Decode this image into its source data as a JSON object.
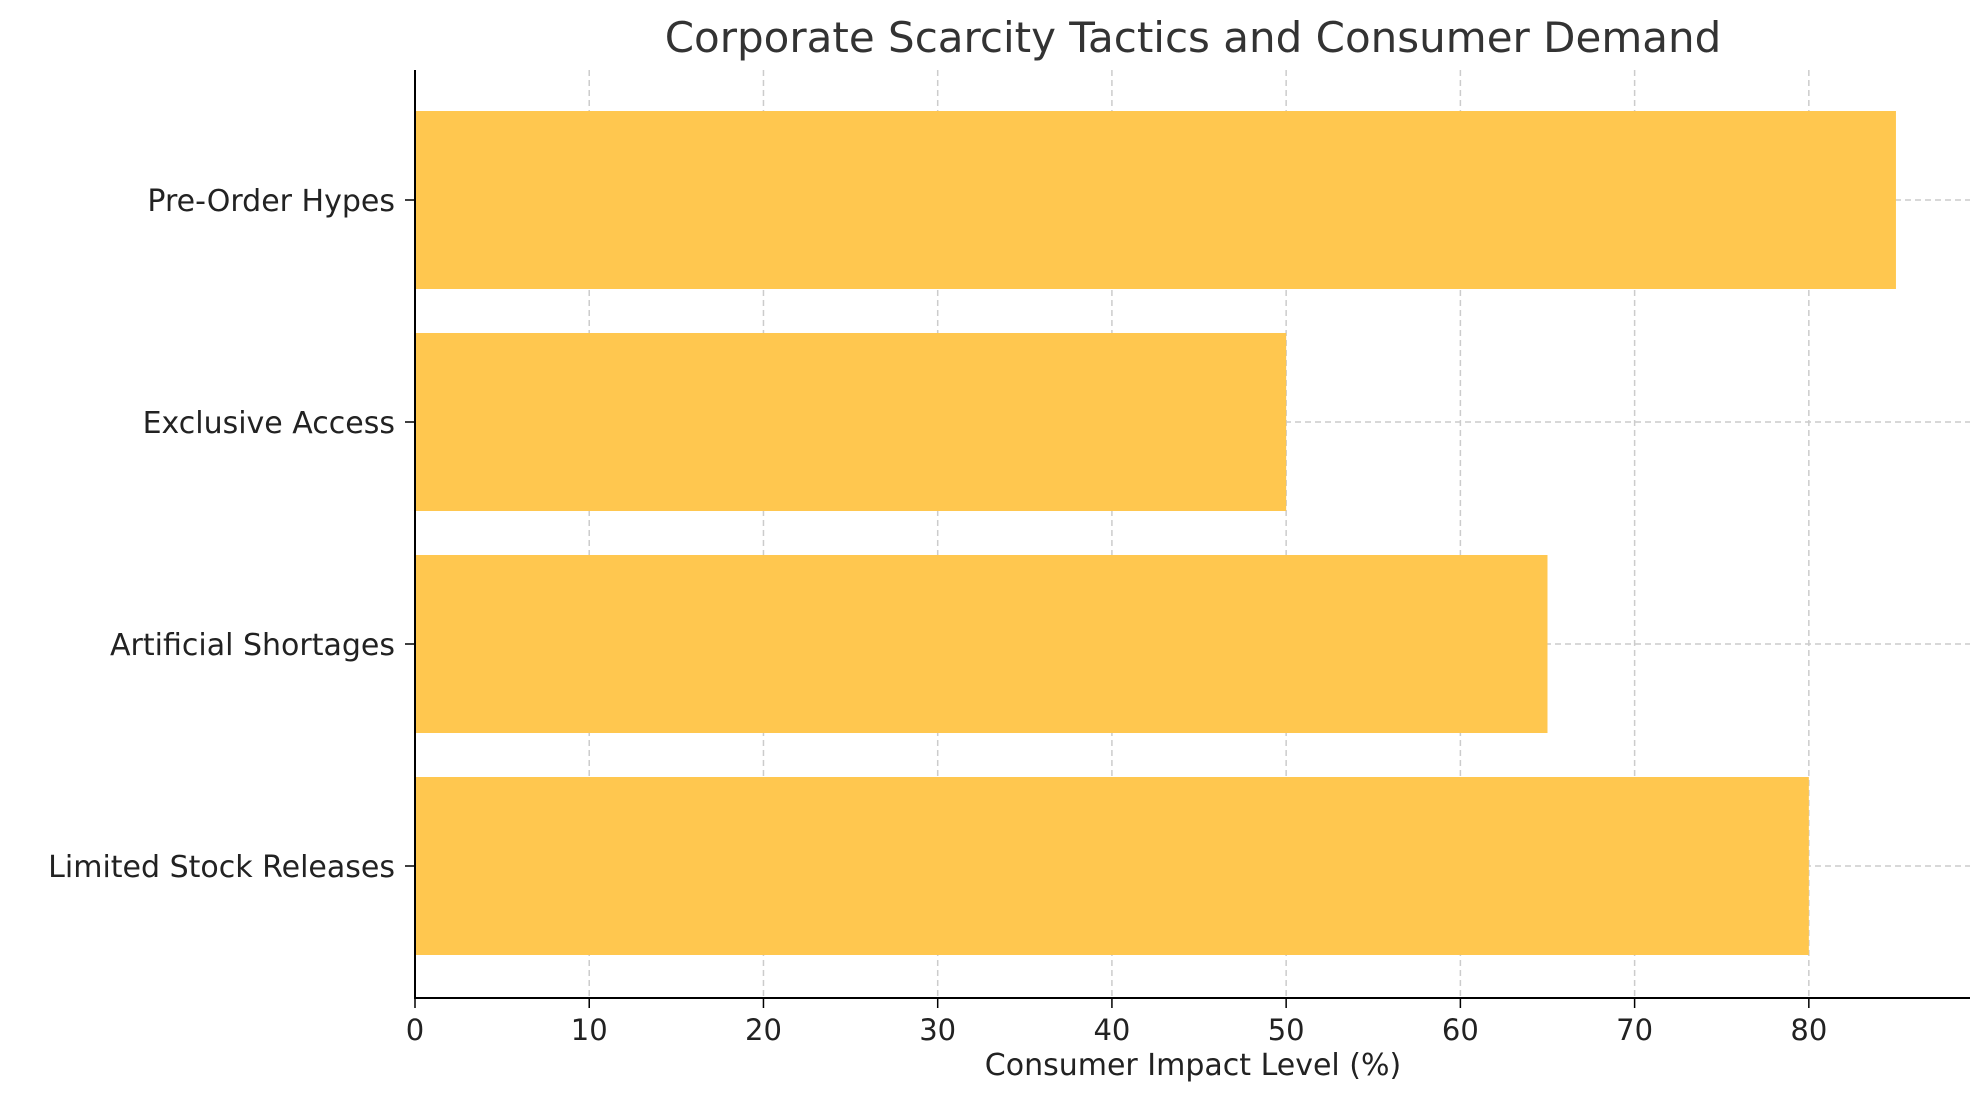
{
  "chart_data": {
    "type": "bar",
    "orientation": "horizontal",
    "title": "Corporate Scarcity Tactics and Consumer Demand",
    "xlabel": "Consumer Impact Level (%)",
    "ylabel": "",
    "categories": [
      "Limited Stock Releases",
      "Artificial Shortages",
      "Exclusive Access",
      "Pre-Order Hypes"
    ],
    "values": [
      80,
      65,
      50,
      85
    ],
    "xlim": [
      0,
      89.25
    ],
    "xticks": [
      0,
      10,
      20,
      30,
      40,
      50,
      60,
      70,
      80
    ],
    "grid": true,
    "grid_style": "dashed",
    "bar_color": "#FFC74F",
    "legend": "none"
  }
}
